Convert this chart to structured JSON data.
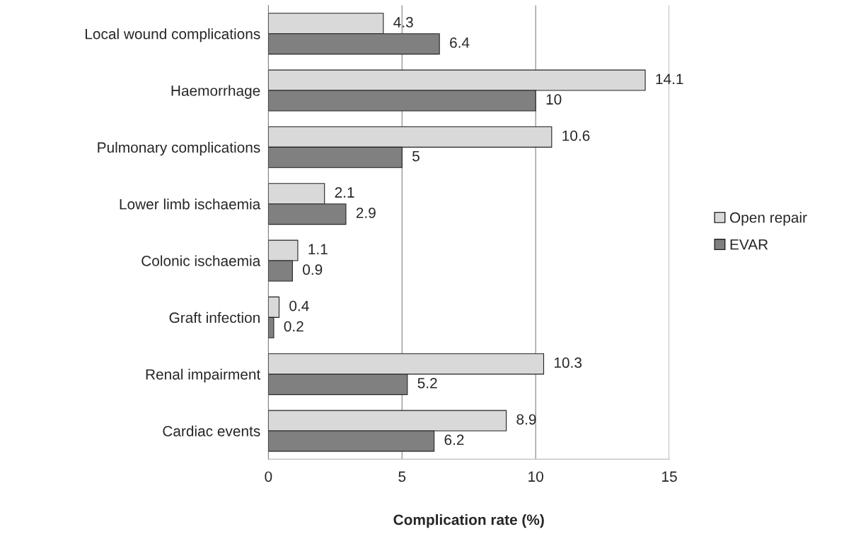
{
  "chart_data": {
    "type": "bar",
    "orientation": "horizontal",
    "xlabel": "Complication rate (%)",
    "categories": [
      "Local wound complications",
      "Haemorrhage",
      "Pulmonary complications",
      "Lower limb ischaemia",
      "Colonic ischaemia",
      "Graft infection",
      "Renal impairment",
      "Cardiac events"
    ],
    "series": [
      {
        "name": "Open repair",
        "color": "#d9d9d9",
        "values": [
          4.3,
          14.1,
          10.6,
          2.1,
          1.1,
          0.4,
          10.3,
          8.9
        ]
      },
      {
        "name": "EVAR",
        "color": "#808080",
        "values": [
          6.4,
          10,
          5,
          2.9,
          0.9,
          0.2,
          5.2,
          6.2
        ]
      }
    ],
    "xlim": [
      0,
      15
    ],
    "xticks": [
      0,
      5,
      10,
      15
    ],
    "grid": "x",
    "legend": "right",
    "data_labels": true
  }
}
